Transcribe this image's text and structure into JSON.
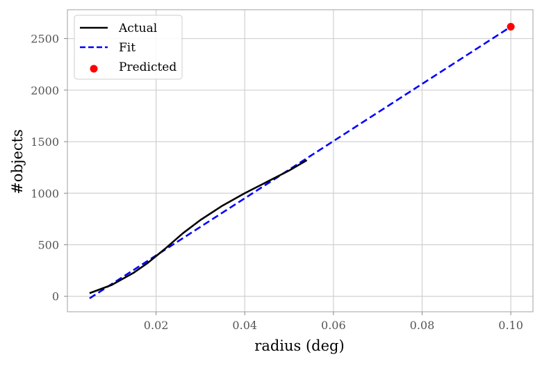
{
  "chart_data": {
    "type": "line",
    "xlabel": "radius (deg)",
    "ylabel": "#objects",
    "xlim": [
      0.0,
      0.105
    ],
    "ylim": [
      -150,
      2780
    ],
    "x_ticks": [
      0.02,
      0.04,
      0.06,
      0.08,
      0.1
    ],
    "x_tick_labels": [
      "0.02",
      "0.04",
      "0.06",
      "0.08",
      "0.10"
    ],
    "y_ticks": [
      0,
      500,
      1000,
      1500,
      2000,
      2500
    ],
    "y_tick_labels": [
      "0",
      "500",
      "1000",
      "1500",
      "2000",
      "2500"
    ],
    "grid": true,
    "legend_position": "top-left",
    "series": [
      {
        "name": "Actual",
        "type": "line",
        "color": "#000000",
        "style": "solid",
        "x": [
          0.005,
          0.01,
          0.015,
          0.018,
          0.022,
          0.026,
          0.03,
          0.035,
          0.04,
          0.045,
          0.05,
          0.054
        ],
        "y": [
          30,
          110,
          230,
          320,
          460,
          610,
          740,
          880,
          1000,
          1110,
          1220,
          1320
        ]
      },
      {
        "name": "Fit",
        "type": "line",
        "color": "#0000ff",
        "style": "dashed",
        "x": [
          0.005,
          0.1
        ],
        "y": [
          -20,
          2615
        ]
      },
      {
        "name": "Predicted",
        "type": "scatter",
        "color": "#ff0000",
        "x": [
          0.1
        ],
        "y": [
          2615
        ]
      }
    ]
  }
}
